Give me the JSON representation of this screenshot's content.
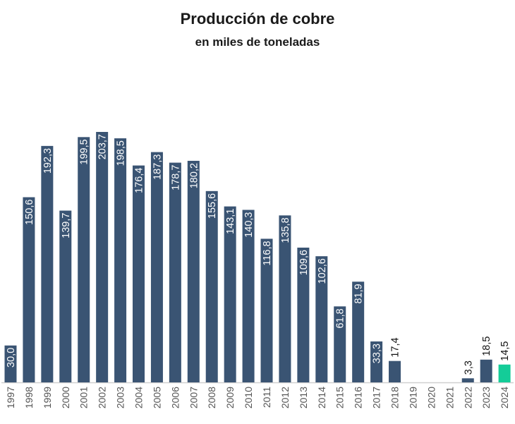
{
  "chart_data": {
    "type": "bar",
    "title": "Producción de cobre",
    "subtitle": "en miles de toneladas",
    "xlabel": "",
    "ylabel": "",
    "ylim": [
      0,
      210
    ],
    "grid": false,
    "categories": [
      "1997",
      "1998",
      "1999",
      "2000",
      "2001",
      "2002",
      "2003",
      "2004",
      "2005",
      "2006",
      "2007",
      "2008",
      "2009",
      "2010",
      "2011",
      "2012",
      "2013",
      "2014",
      "2015",
      "2016",
      "2017",
      "2018",
      "2019",
      "2020",
      "2021",
      "2022",
      "2023",
      "2024"
    ],
    "values": [
      30.0,
      150.6,
      192.3,
      139.7,
      199.5,
      203.7,
      198.5,
      176.4,
      187.3,
      178.7,
      180.2,
      155.6,
      143.1,
      140.3,
      116.8,
      135.8,
      109.6,
      102.6,
      61.8,
      81.9,
      33.3,
      17.4,
      null,
      null,
      null,
      3.3,
      18.5,
      14.5
    ],
    "labels": [
      "30,0",
      "150,6",
      "192,3",
      "139,7",
      "199,5",
      "203,7",
      "198,5",
      "176,4",
      "187,3",
      "178,7",
      "180,2",
      "155,6",
      "143,1",
      "140,3",
      "116,8",
      "135,8",
      "109,6",
      "102,6",
      "61,8",
      "81,9",
      "33,3",
      "17,4",
      "",
      "",
      "",
      "3,3",
      "18,5",
      "14,5"
    ],
    "colors": {
      "bar": "#3a5473",
      "highlight": "#14cc98",
      "axis": "#d0d0d0",
      "tick": "#555555"
    },
    "highlight_category": "2024"
  }
}
